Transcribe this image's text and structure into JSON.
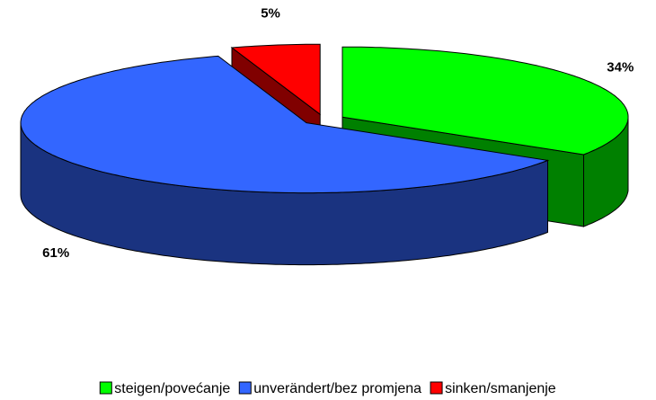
{
  "chart_data": {
    "type": "pie3d",
    "categories": [
      "steigen/povećanje",
      "unverändert/bez promjena",
      "sinken/smanjenje"
    ],
    "values": [
      34,
      61,
      5
    ],
    "value_labels": [
      "34%",
      "61%",
      "5%"
    ],
    "colors": [
      "#00ff00",
      "#3366ff",
      "#ff0000"
    ],
    "legend": "bottom"
  }
}
